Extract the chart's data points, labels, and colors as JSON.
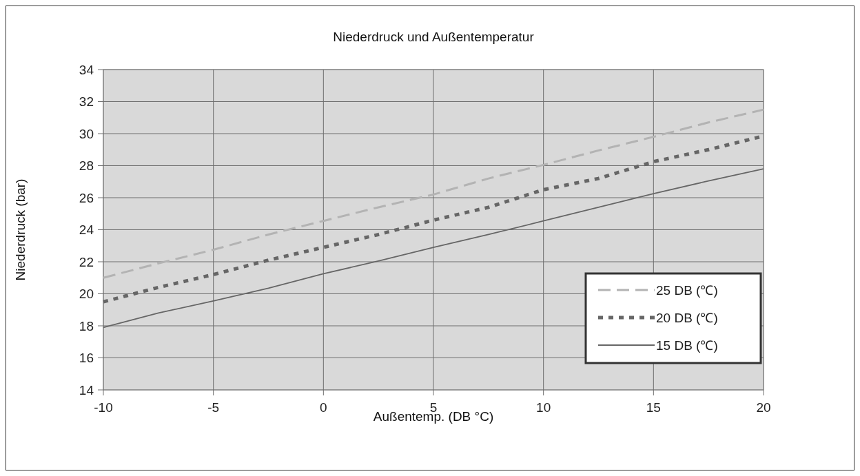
{
  "chart_data": {
    "type": "line",
    "title": "Niederdruck und Außentemperatur",
    "xlabel": "Außentemp. (DB °C)",
    "ylabel": "Niederdruck (bar)",
    "x": [
      -10,
      -7.5,
      -5,
      -2.5,
      0,
      2.5,
      5,
      7.5,
      10,
      12.5,
      15,
      17.5,
      20
    ],
    "xlim": [
      -10,
      20
    ],
    "xticks": [
      -10,
      -5,
      0,
      5,
      10,
      15,
      20
    ],
    "ylim": [
      14,
      34
    ],
    "yticks": [
      14,
      16,
      18,
      20,
      22,
      24,
      26,
      28,
      30,
      32,
      34
    ],
    "grid": true,
    "legend": "bottom right",
    "series": [
      {
        "name": "25 DB (℃)",
        "color": "#b3b3b3",
        "line_style": "dashed",
        "values": [
          21.0,
          21.9,
          22.75,
          23.7,
          24.55,
          25.4,
          26.2,
          27.2,
          28.05,
          28.95,
          29.8,
          30.7,
          31.5
        ]
      },
      {
        "name": "20 DB (℃)",
        "color": "#666666",
        "line_style": "dotted",
        "values": [
          19.5,
          20.4,
          21.2,
          22.1,
          22.9,
          23.7,
          24.6,
          25.4,
          26.5,
          27.2,
          28.25,
          29.0,
          29.85
        ]
      },
      {
        "name": "15 DB (℃)",
        "color": "#666666",
        "line_style": "solid",
        "values": [
          17.9,
          18.8,
          19.55,
          20.35,
          21.25,
          22.05,
          22.9,
          23.7,
          24.55,
          25.4,
          26.25,
          27.05,
          27.8
        ]
      }
    ]
  }
}
